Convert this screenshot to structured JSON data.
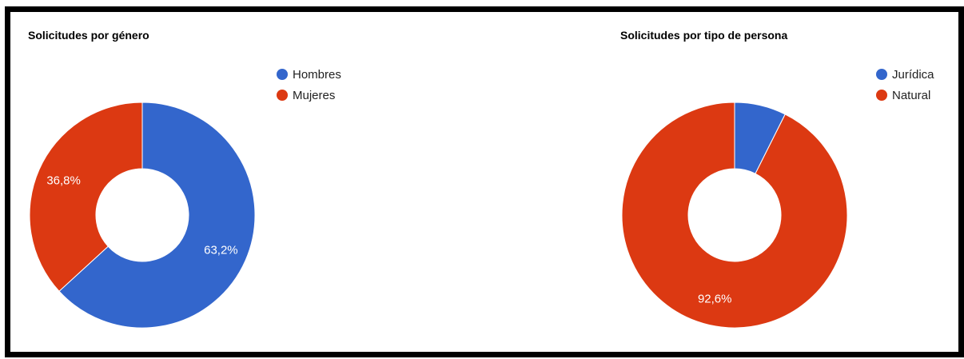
{
  "chart_data": [
    {
      "type": "pie",
      "donut": true,
      "title": "Solicitudes por género",
      "legend_position": "top-right",
      "slices": [
        {
          "name": "Hombres",
          "value": 63.2,
          "label": "63,2%",
          "color": "#3366cc"
        },
        {
          "name": "Mujeres",
          "value": 36.8,
          "label": "36,8%",
          "color": "#dc3912"
        }
      ]
    },
    {
      "type": "pie",
      "donut": true,
      "title": "Solicitudes por tipo de persona",
      "legend_position": "top-right",
      "slices": [
        {
          "name": "Jurídica",
          "value": 7.4,
          "label": "",
          "color": "#3366cc"
        },
        {
          "name": "Natural",
          "value": 92.6,
          "label": "92,6%",
          "color": "#dc3912"
        }
      ]
    }
  ]
}
